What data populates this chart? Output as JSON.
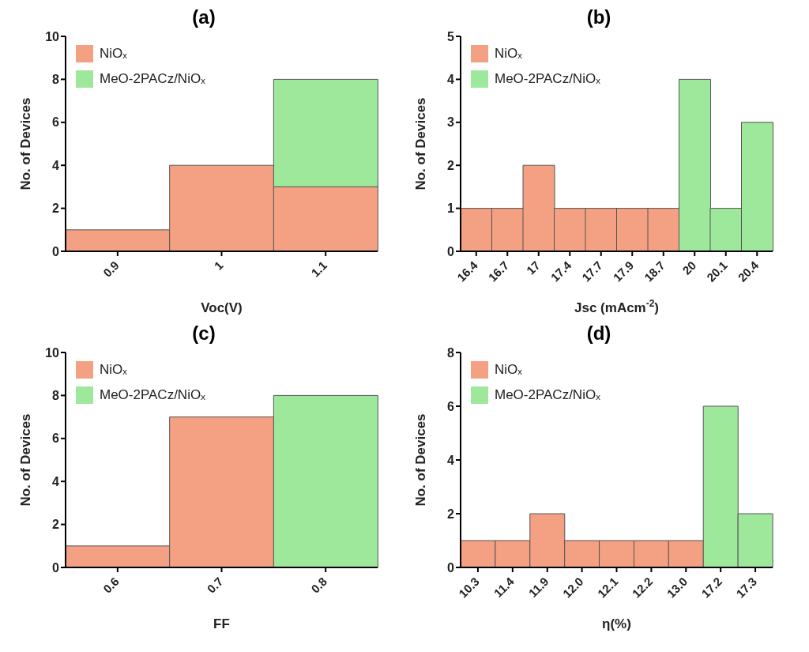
{
  "chart_data": [
    {
      "type": "bar",
      "title": "(a)",
      "xlabel": "Voc(V)",
      "ylabel": "No. of Devices",
      "categories": [
        "0.9",
        "1",
        "1.1"
      ],
      "stacked": true,
      "legend": "top left",
      "ylim": [
        0,
        10
      ],
      "yticks": [
        0,
        2,
        4,
        6,
        8,
        10
      ],
      "series": [
        {
          "name": "NiOₓ",
          "color": "#f4a083",
          "values": [
            1,
            4,
            3
          ]
        },
        {
          "name": "MeO-2PACz/NiOₓ",
          "color": "#9ee89c",
          "values": [
            null,
            null,
            5
          ]
        }
      ]
    },
    {
      "type": "bar",
      "title": "(b)",
      "xlabel": "Jsc (mAcm$^{-2}$)",
      "ylabel": "No. of Devices",
      "categories": [
        "16.4",
        "16.7",
        "17",
        "17.4",
        "17.7",
        "17.9",
        "18.7",
        "20",
        "20.1",
        "20.4"
      ],
      "stacked": true,
      "legend": "top left",
      "ylim": [
        0,
        5
      ],
      "yticks": [
        0,
        1,
        2,
        3,
        4,
        5
      ],
      "series": [
        {
          "name": "NiOₓ",
          "color": "#f4a083",
          "values": [
            1,
            1,
            2,
            1,
            1,
            1,
            1,
            null,
            null,
            null
          ]
        },
        {
          "name": "MeO-2PACz/NiOₓ",
          "color": "#9ee89c",
          "values": [
            null,
            null,
            null,
            null,
            null,
            null,
            null,
            4,
            1,
            3
          ]
        }
      ]
    },
    {
      "type": "bar",
      "title": "(c)",
      "xlabel": "FF",
      "ylabel": "No. of Devices",
      "categories": [
        "0.6",
        "0.7",
        "0.8"
      ],
      "stacked": true,
      "legend": "top left",
      "ylim": [
        0,
        10
      ],
      "yticks": [
        0,
        2,
        4,
        6,
        8,
        10
      ],
      "series": [
        {
          "name": "NiOₓ",
          "color": "#f4a083",
          "values": [
            1,
            7,
            null
          ]
        },
        {
          "name": "MeO-2PACz/NiOₓ",
          "color": "#9ee89c",
          "values": [
            null,
            null,
            8
          ]
        }
      ]
    },
    {
      "type": "bar",
      "title": "(d)",
      "xlabel": "η(%)",
      "ylabel": "No. of Devices",
      "categories": [
        "10.3",
        "11.4",
        "11.9",
        "12.0",
        "12.1",
        "12.2",
        "13.0",
        "17.2",
        "17.3"
      ],
      "stacked": true,
      "legend": "top left",
      "ylim": [
        0,
        8
      ],
      "yticks": [
        0,
        2,
        4,
        6,
        8
      ],
      "series": [
        {
          "name": "NiOₓ",
          "color": "#f4a083",
          "values": [
            1,
            1,
            2,
            1,
            1,
            1,
            1,
            null,
            null
          ]
        },
        {
          "name": "MeO-2PACz/NiOₓ",
          "color": "#9ee89c",
          "values": [
            null,
            null,
            null,
            null,
            null,
            null,
            null,
            6,
            2
          ]
        }
      ]
    }
  ]
}
